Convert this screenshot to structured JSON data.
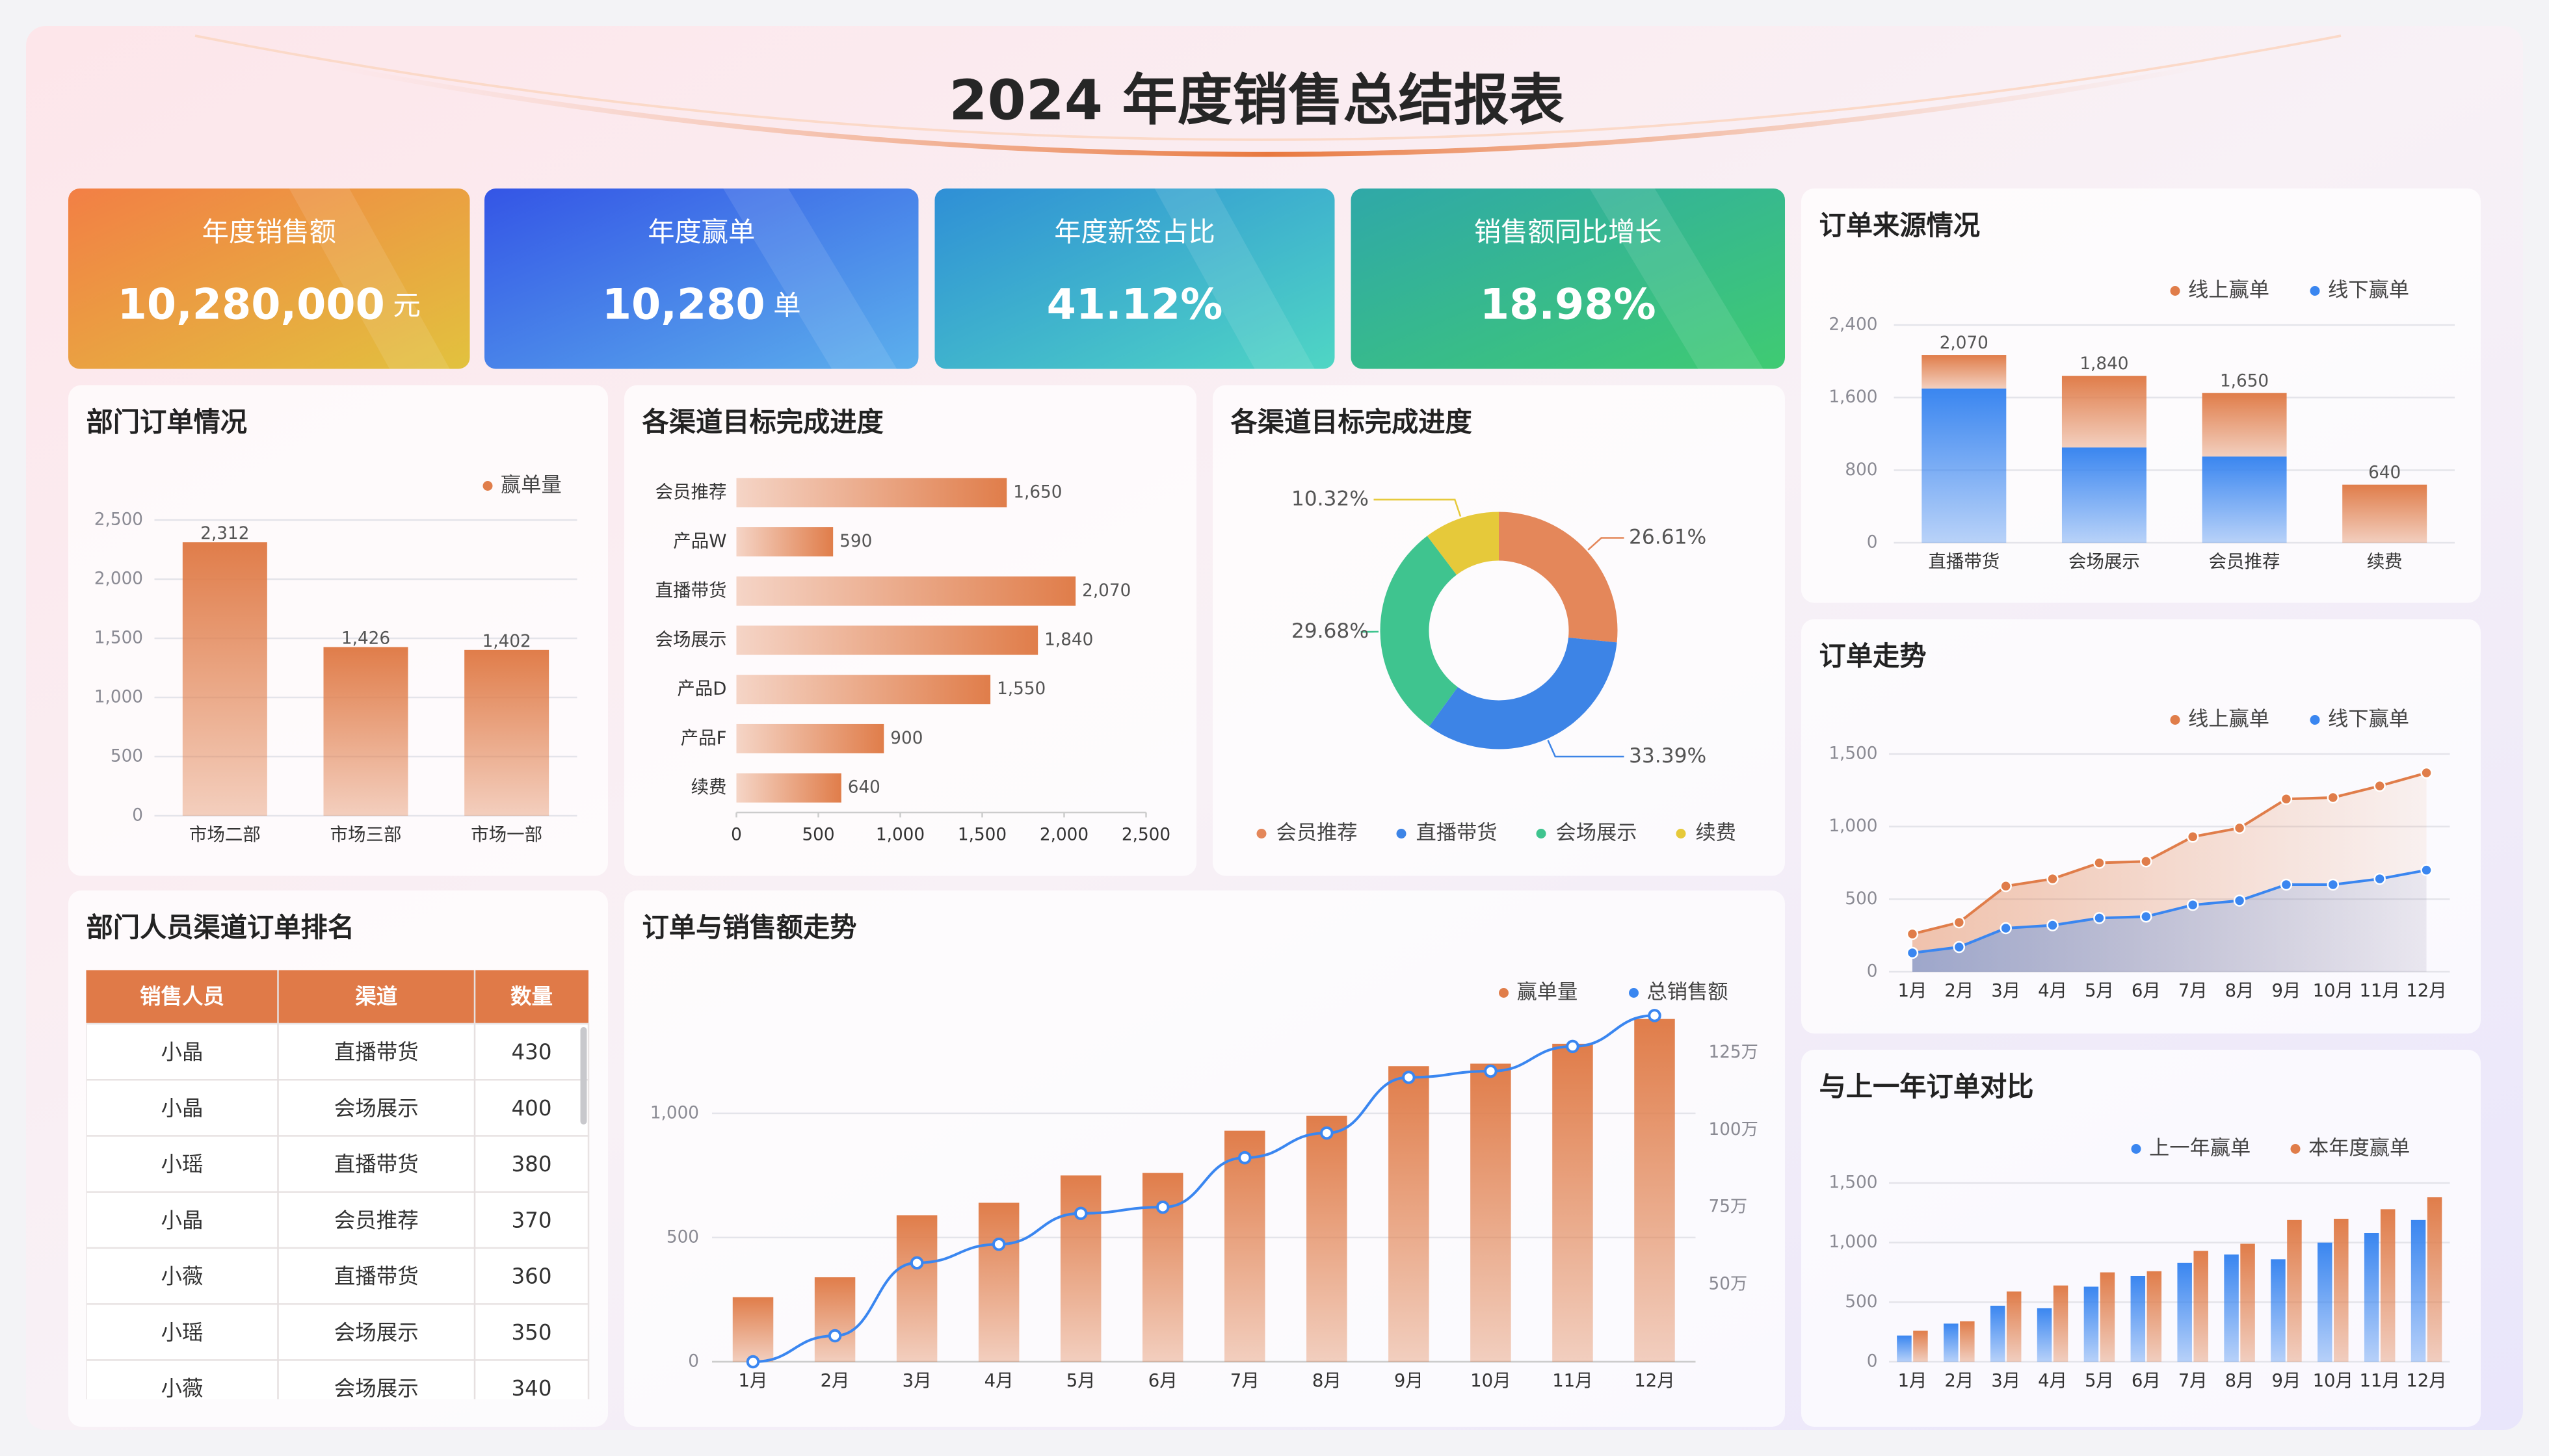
{
  "header": {
    "title": "2024 年度销售总结报表"
  },
  "kpis": [
    {
      "label": "年度销售额",
      "value": "10,280,000",
      "unit": "元"
    },
    {
      "label": "年度赢单",
      "value": "10,280",
      "unit": "单"
    },
    {
      "label": "年度新签占比",
      "value": "41.12%"
    },
    {
      "label": "销售额同比增长",
      "value": "18.98%"
    }
  ],
  "chart_data": [
    {
      "type": "bar",
      "title": "部门订单情况",
      "categories": [
        "市场二部",
        "市场三部",
        "市场一部"
      ],
      "series": [
        {
          "name": "赢单量",
          "color": "#e07d4a",
          "values": [
            2312,
            1426,
            1402
          ],
          "value_labels": [
            "2,312",
            "1,426",
            "1,402"
          ]
        }
      ],
      "ylim": [
        0,
        2500
      ],
      "yticks": [
        0,
        500,
        {
          "value": 1000,
          "label": "1,000"
        },
        {
          "value": 1500,
          "label": "1,500"
        },
        {
          "value": 2000,
          "label": "2,000"
        },
        {
          "value": 2500,
          "label": "2,500"
        }
      ],
      "grid": true
    },
    {
      "type": "barh",
      "title": "各渠道目标完成进度",
      "categories": [
        "会员推荐",
        "产品W",
        "直播带货",
        "会场展示",
        "产品D",
        "产品F",
        "续费"
      ],
      "values": [
        1650,
        590,
        2070,
        1840,
        1550,
        900,
        640
      ],
      "value_labels": [
        "1,650",
        "590",
        "2,070",
        "1,840",
        "1,550",
        "900",
        "640"
      ],
      "color": "#e07d4a",
      "xlim": [
        0,
        2500
      ],
      "xticks": [
        0,
        500,
        {
          "value": 1000,
          "label": "1,000"
        },
        {
          "value": 1500,
          "label": "1,500"
        },
        {
          "value": 2000,
          "label": "2,000"
        },
        {
          "value": 2500,
          "label": "2,500"
        }
      ],
      "grid": false
    },
    {
      "type": "pie",
      "title": "各渠道目标完成进度",
      "categories": [
        "会员推荐",
        "直播带货",
        "会场展示",
        "续费"
      ],
      "values": [
        26.61,
        33.39,
        29.68,
        10.32
      ],
      "value_labels": [
        "26.61%",
        "33.39%",
        "29.68%",
        "10.32%"
      ],
      "colors": [
        "#e4875a",
        "#3d84e6",
        "#3fc48f",
        "#e6c93a"
      ]
    },
    {
      "type": "bar",
      "title": "订单来源情况",
      "stacked": true,
      "categories": [
        "直播带货",
        "会场展示",
        "会员推荐",
        "续费"
      ],
      "series": [
        {
          "name": "线上赢单",
          "color": "#e07d4a",
          "values": [
            370,
            790,
            700,
            640
          ]
        },
        {
          "name": "线下赢单",
          "color": "#3a86f0",
          "values": [
            1700,
            1050,
            950,
            0
          ]
        }
      ],
      "totals": [
        2070,
        1840,
        1650,
        640
      ],
      "total_labels": [
        "2,070",
        "1,840",
        "1,650",
        "640"
      ],
      "ylim": [
        0,
        2400
      ],
      "yticks": [
        0,
        800,
        {
          "value": 1600,
          "label": "1,600"
        },
        {
          "value": 2400,
          "label": "2,400"
        }
      ],
      "grid": true
    },
    {
      "type": "area",
      "title": "订单走势",
      "categories": [
        "1月",
        "2月",
        "3月",
        "4月",
        "5月",
        "6月",
        "7月",
        "8月",
        "9月",
        "10月",
        "11月",
        "12月"
      ],
      "series": [
        {
          "name": "线上赢单",
          "color": "#e07d4a",
          "values": [
            260,
            340,
            590,
            640,
            750,
            760,
            930,
            990,
            1190,
            1200,
            1280,
            1370
          ]
        },
        {
          "name": "线下赢单",
          "color": "#3a86f0",
          "values": [
            130,
            170,
            300,
            320,
            370,
            380,
            460,
            490,
            600,
            600,
            640,
            700
          ]
        }
      ],
      "ylim": [
        0,
        1500
      ],
      "yticks": [
        0,
        500,
        {
          "value": 1000,
          "label": "1,000"
        },
        {
          "value": 1500,
          "label": "1,500"
        }
      ],
      "grid": true
    },
    {
      "type": "bar",
      "title": "与上一年订单对比",
      "categories": [
        "1月",
        "2月",
        "3月",
        "4月",
        "5月",
        "6月",
        "7月",
        "8月",
        "9月",
        "10月",
        "11月",
        "12月"
      ],
      "series": [
        {
          "name": "上一年赢单",
          "color": "#3a86f0",
          "values": [
            220,
            320,
            470,
            450,
            630,
            720,
            830,
            900,
            860,
            1000,
            1080,
            1190
          ]
        },
        {
          "name": "本年度赢单",
          "color": "#e07d4a",
          "values": [
            260,
            340,
            590,
            640,
            750,
            760,
            930,
            990,
            1190,
            1200,
            1280,
            1380
          ]
        }
      ],
      "ylim": [
        0,
        1500
      ],
      "yticks": [
        0,
        500,
        {
          "value": 1000,
          "label": "1,000"
        },
        {
          "value": 1500,
          "label": "1,500"
        }
      ],
      "grid": true
    },
    {
      "type": "combo",
      "title": "订单与销售额走势",
      "categories": [
        "1月",
        "2月",
        "3月",
        "4月",
        "5月",
        "6月",
        "7月",
        "8月",
        "9月",
        "10月",
        "11月",
        "12月"
      ],
      "series": [
        {
          "name": "赢单量",
          "color": "#e07d4a",
          "values": [
            260,
            340,
            590,
            640,
            750,
            760,
            930,
            990,
            1190,
            1200,
            1280,
            1380
          ]
        },
        {
          "name": "总销售额",
          "color": "#3a86f0",
          "axis": "y2",
          "values": [
            25,
            33.4,
            57,
            63,
            73,
            75,
            91,
            99,
            117,
            119,
            127,
            137
          ]
        }
      ],
      "ylim": [
        0,
        1400
      ],
      "yticks": [
        0,
        500,
        {
          "value": 1000,
          "label": "1,000"
        }
      ],
      "y2lim": [
        25,
        137.5
      ],
      "y2ticks": [
        {
          "value": 50,
          "label": "50万"
        },
        {
          "value": 75,
          "label": "75万"
        },
        {
          "value": 100,
          "label": "100万"
        },
        {
          "value": 125,
          "label": "125万"
        }
      ],
      "grid": true
    }
  ],
  "table": {
    "title": "部门人员渠道订单排名",
    "columns": [
      "销售人员",
      "渠道",
      "数量"
    ],
    "rows": [
      [
        "小晶",
        "直播带货",
        430
      ],
      [
        "小晶",
        "会场展示",
        400
      ],
      [
        "小瑶",
        "直播带货",
        380
      ],
      [
        "小晶",
        "会员推荐",
        370
      ],
      [
        "小薇",
        "直播带货",
        360
      ],
      [
        "小瑶",
        "会场展示",
        350
      ],
      [
        "小薇",
        "会场展示",
        340
      ]
    ]
  }
}
